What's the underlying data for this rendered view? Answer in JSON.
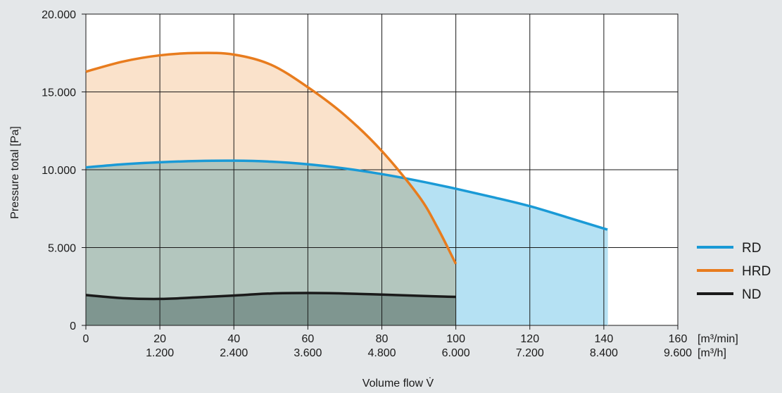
{
  "chart_data": {
    "type": "area",
    "title": "",
    "xlabel": "Volume flow V̇",
    "ylabel": "Pressure total [Pa]",
    "xlim": [
      0,
      160
    ],
    "ylim": [
      0,
      20000
    ],
    "grid": true,
    "legend_position": "right",
    "x_ticks": [
      {
        "value": 0,
        "label": "0",
        "sub": ""
      },
      {
        "value": 20,
        "label": "20",
        "sub": "1.200"
      },
      {
        "value": 40,
        "label": "40",
        "sub": "2.400"
      },
      {
        "value": 60,
        "label": "60",
        "sub": "3.600"
      },
      {
        "value": 80,
        "label": "80",
        "sub": "4.800"
      },
      {
        "value": 100,
        "label": "100",
        "sub": "6.000"
      },
      {
        "value": 120,
        "label": "120",
        "sub": "7.200"
      },
      {
        "value": 140,
        "label": "140",
        "sub": "8.400"
      },
      {
        "value": 160,
        "label": "160",
        "sub": "9.600"
      }
    ],
    "x_unit_primary": "[m³/min]",
    "x_unit_secondary": "[m³/h]",
    "y_ticks": [
      {
        "value": 0,
        "label": "0"
      },
      {
        "value": 5000,
        "label": "5.000"
      },
      {
        "value": 10000,
        "label": "10.000"
      },
      {
        "value": 15000,
        "label": "15.000"
      },
      {
        "value": 20000,
        "label": "20.000"
      }
    ],
    "series": [
      {
        "name": "RD",
        "color": "#1a9ad6",
        "fill": "#b5e1f3",
        "x": [
          0,
          10,
          20,
          30,
          40,
          50,
          60,
          70,
          80,
          90,
          100,
          110,
          120,
          130,
          141
        ],
        "y": [
          10150,
          10350,
          10480,
          10560,
          10580,
          10520,
          10350,
          10080,
          9720,
          9280,
          8780,
          8240,
          7660,
          6950,
          6150
        ]
      },
      {
        "name": "HRD",
        "color": "#e87c1e",
        "fill": "#fae2cb",
        "x": [
          0,
          10,
          20,
          30,
          40,
          50,
          60,
          70,
          80,
          90,
          95,
          100
        ],
        "y": [
          16300,
          16950,
          17350,
          17500,
          17400,
          16750,
          15300,
          13500,
          11200,
          8300,
          6300,
          3950
        ]
      },
      {
        "name": "ND",
        "color": "#1a1a1a",
        "fill": "#7f9690",
        "x": [
          0,
          10,
          20,
          30,
          40,
          50,
          60,
          70,
          80,
          90,
          100
        ],
        "y": [
          1950,
          1750,
          1700,
          1800,
          1920,
          2050,
          2080,
          2050,
          1980,
          1900,
          1830
        ]
      }
    ],
    "overlap_fill": "#b3c6be"
  }
}
